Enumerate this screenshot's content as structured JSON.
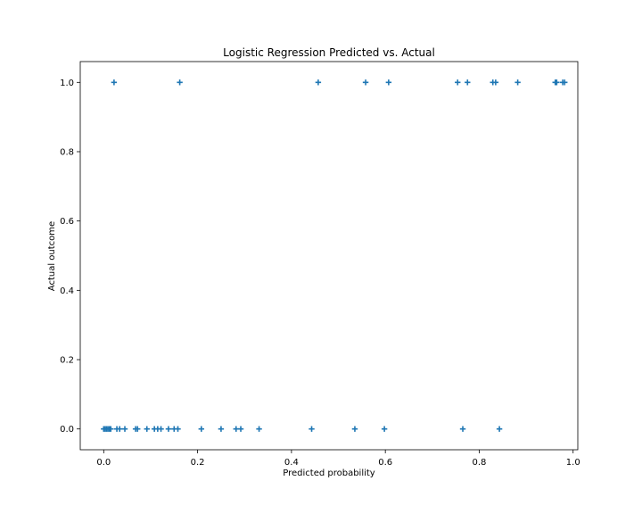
{
  "chart_data": {
    "type": "scatter",
    "title": "Logistic Regression Predicted vs. Actual",
    "xlabel": "Predicted probability",
    "ylabel": "Actual outcome",
    "xlim": [
      -0.05,
      1.01
    ],
    "ylim": [
      -0.06,
      1.06
    ],
    "xticks": [
      0.0,
      0.2,
      0.4,
      0.6,
      0.8,
      1.0
    ],
    "xtick_labels": [
      "0.0",
      "0.2",
      "0.4",
      "0.6",
      "0.8",
      "1.0"
    ],
    "yticks": [
      0.0,
      0.2,
      0.4,
      0.6,
      0.8,
      1.0
    ],
    "ytick_labels": [
      "0.0",
      "0.2",
      "0.4",
      "0.6",
      "0.8",
      "1.0"
    ],
    "grid": false,
    "marker": "plus",
    "color": "#1f77b4",
    "points": [
      {
        "x": 0.022,
        "y": 1
      },
      {
        "x": 0.162,
        "y": 1
      },
      {
        "x": 0.457,
        "y": 1
      },
      {
        "x": 0.558,
        "y": 1
      },
      {
        "x": 0.607,
        "y": 1
      },
      {
        "x": 0.754,
        "y": 1
      },
      {
        "x": 0.775,
        "y": 1
      },
      {
        "x": 0.829,
        "y": 1
      },
      {
        "x": 0.835,
        "y": 1
      },
      {
        "x": 0.882,
        "y": 1
      },
      {
        "x": 0.962,
        "y": 1
      },
      {
        "x": 0.965,
        "y": 1
      },
      {
        "x": 0.978,
        "y": 1
      },
      {
        "x": 0.982,
        "y": 1
      },
      {
        "x": 0.0,
        "y": 0
      },
      {
        "x": 0.003,
        "y": 0
      },
      {
        "x": 0.006,
        "y": 0
      },
      {
        "x": 0.009,
        "y": 0
      },
      {
        "x": 0.012,
        "y": 0
      },
      {
        "x": 0.015,
        "y": 0
      },
      {
        "x": 0.028,
        "y": 0
      },
      {
        "x": 0.034,
        "y": 0
      },
      {
        "x": 0.045,
        "y": 0
      },
      {
        "x": 0.068,
        "y": 0
      },
      {
        "x": 0.072,
        "y": 0
      },
      {
        "x": 0.092,
        "y": 0
      },
      {
        "x": 0.108,
        "y": 0
      },
      {
        "x": 0.115,
        "y": 0
      },
      {
        "x": 0.122,
        "y": 0
      },
      {
        "x": 0.138,
        "y": 0
      },
      {
        "x": 0.15,
        "y": 0
      },
      {
        "x": 0.158,
        "y": 0
      },
      {
        "x": 0.208,
        "y": 0
      },
      {
        "x": 0.25,
        "y": 0
      },
      {
        "x": 0.282,
        "y": 0
      },
      {
        "x": 0.292,
        "y": 0
      },
      {
        "x": 0.331,
        "y": 0
      },
      {
        "x": 0.443,
        "y": 0
      },
      {
        "x": 0.535,
        "y": 0
      },
      {
        "x": 0.598,
        "y": 0
      },
      {
        "x": 0.765,
        "y": 0
      },
      {
        "x": 0.843,
        "y": 0
      }
    ]
  }
}
